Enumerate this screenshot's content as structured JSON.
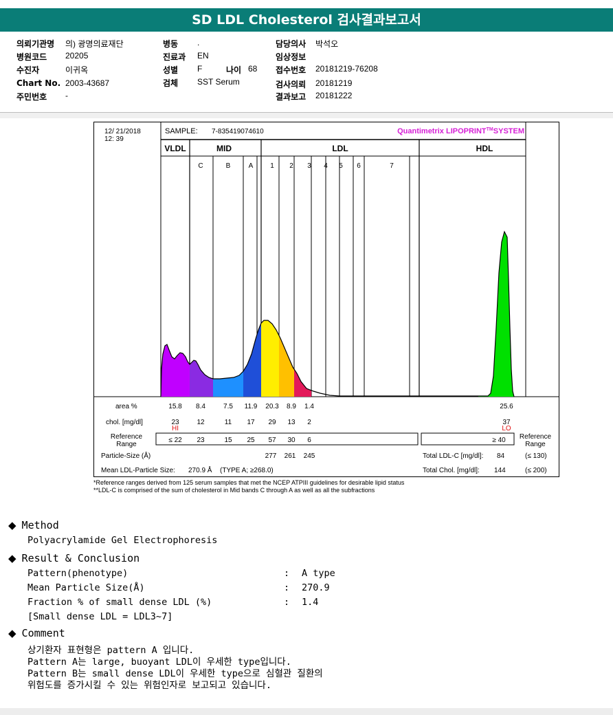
{
  "title": "SD LDL Cholesterol 검사결과보고서",
  "info": {
    "institution_label": "의뢰기관명",
    "institution": "의) 광명의료재단",
    "hospital_code_label": "병원코드",
    "hospital_code": "20205",
    "examinee_label": "수진자",
    "examinee": "이귀옥",
    "chart_label": "Chart No.",
    "chart": "2003-43687",
    "resident_label": "주민번호",
    "resident": "-",
    "ward_label": "병동",
    "ward": ".",
    "dept_label": "진료과",
    "dept": "EN",
    "sex_label": "성별",
    "sex": "F",
    "age_label": "나이",
    "age": "68",
    "specimen_label": "검체",
    "specimen": "SST Serum",
    "doctor_label": "담당의사",
    "doctor": "박석오",
    "clinical_label": "임상정보",
    "clinical": "",
    "accession_label": "접수번호",
    "accession": "20181219-76208",
    "request_label": "검사의뢰",
    "request": "20181219",
    "report_label": "결과보고",
    "report": "20181222"
  },
  "lipoprint": {
    "date": "12/ 21/2018",
    "time": "12: 39",
    "sample_label": "SAMPLE:",
    "sample_no": "7-835419074610",
    "brand": "Quantimetrix LIPOPRINT",
    "brand_tm": "TM",
    "brand_system": "SYSTEM",
    "groups": [
      "VLDL",
      "MID",
      "LDL",
      "HDL"
    ],
    "bands": [
      "C",
      "B",
      "A",
      "1",
      "2",
      "3",
      "4",
      "5",
      "6",
      "7"
    ],
    "area_label": "area %",
    "area_values": [
      "15.8",
      "8.4",
      "7.5",
      "11.9",
      "20.3",
      "8.9",
      "1.4"
    ],
    "area_hdl": "25.6",
    "chol_label": "chol. [mg/dl]",
    "chol_values": [
      "23",
      "12",
      "11",
      "17",
      "29",
      "13",
      "2"
    ],
    "chol_hdl": "37",
    "flag_hi": "HI",
    "flag_lo": "LO",
    "ref_label_1": "Reference",
    "ref_label_2": "Range",
    "ref_values": [
      "≤ 22",
      "23",
      "15",
      "25",
      "57",
      "30",
      "6"
    ],
    "ref_hdl": "≥ 40",
    "ref_right_1": "Reference",
    "ref_right_2": "Range",
    "particle_label": "Particle-Size (Å)",
    "particle_values": [
      "277",
      "261",
      "245"
    ],
    "mean_label": "Mean LDL-Particle Size:",
    "mean_value": "270.9 Å",
    "mean_type": "(TYPE A; ≥268.0)",
    "total_ldl_label": "Total LDL-C [mg/dl]:",
    "total_ldl": "84",
    "total_ldl_ref": "(≤ 130)",
    "total_chol_label": "Total Chol. [mg/dl]:",
    "total_chol": "144",
    "total_chol_ref": "(≤ 200)",
    "note1": "*Reference ranges derived from 125 serum samples that met the NCEP ATPIII guidelines for desirable lipid status",
    "note2": "**LDL-C is comprised of the sum of cholesterol in Mid bands C through A as well as all the subfractions"
  },
  "method": {
    "heading": "Method",
    "text": "Polyacrylamide Gel Electrophoresis"
  },
  "result": {
    "heading": "Result & Conclusion",
    "rows": [
      {
        "label": "Pattern(phenotype)",
        "value": "A type"
      },
      {
        "label": "Mean Particle Size(Å)",
        "value": "270.9"
      },
      {
        "label": "Fraction % of small dense LDL (%)",
        "value": "1.4"
      }
    ],
    "colon": ":",
    "note": "[Small dense LDL = LDL3~7]"
  },
  "comment": {
    "heading": "Comment",
    "lines": [
      "상기환자 표현형은 pattern A 입니다.",
      "Pattern A는 large, buoyant LDL이 우세한 type입니다.",
      "Pattern B는 small dense LDL이 우세한 type으로 심혈관 질환의",
      "위험도를 증가시킬 수 있는 위험인자로 보고되고 있습니다."
    ]
  },
  "colors": {
    "header_bg": "#0a7d77",
    "brand": "#d61fd6",
    "flag": "#e01010",
    "vldl": "#c000ff",
    "midc": "#8a2be2",
    "midb": "#1e90ff",
    "mida": "#1f4fd8",
    "ldl1": "#ffee00",
    "ldl2": "#ffc000",
    "ldl3": "#e31a5a",
    "hdl": "#00e000"
  }
}
